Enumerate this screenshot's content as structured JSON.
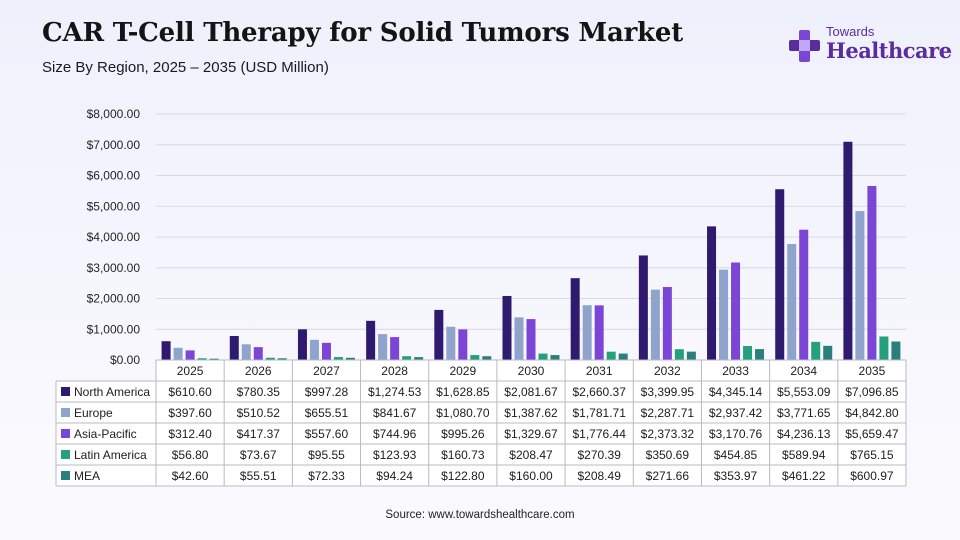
{
  "header": {
    "title": "CAR T-Cell Therapy for Solid Tumors Market",
    "subtitle": "Size By Region, 2025 – 2035 (USD Million)"
  },
  "logo": {
    "line1": "Towards",
    "line2": "Healthcare",
    "color": "#5a2d9c",
    "icon": "medical-cross-icon"
  },
  "source": "Source: www.towardshealthcare.com",
  "chart_data": {
    "type": "bar",
    "title": "CAR T-Cell Therapy for Solid Tumors Market",
    "subtitle": "Size By Region, 2025 – 2035 (USD Million)",
    "categories": [
      "2025",
      "2026",
      "2027",
      "2028",
      "2029",
      "2030",
      "2031",
      "2032",
      "2033",
      "2034",
      "2035"
    ],
    "ylim": [
      0,
      8000
    ],
    "yticks": [
      0,
      1000,
      2000,
      3000,
      4000,
      5000,
      6000,
      7000,
      8000
    ],
    "ytick_labels": [
      "$0.00",
      "$1,000.00",
      "$2,000.00",
      "$3,000.00",
      "$4,000.00",
      "$5,000.00",
      "$6,000.00",
      "$7,000.00",
      "$8,000.00"
    ],
    "grid": true,
    "legend": "table-below",
    "series": [
      {
        "name": "North America",
        "color": "#2e1a6e",
        "values": [
          610.6,
          780.35,
          997.28,
          1274.53,
          1628.85,
          2081.67,
          2660.37,
          3399.95,
          4345.14,
          5553.09,
          7096.85
        ],
        "labels": [
          "$610.60",
          "$780.35",
          "$997.28",
          "$1,274.53",
          "$1,628.85",
          "$2,081.67",
          "$2,660.37",
          "$3,399.95",
          "$4,345.14",
          "$5,553.09",
          "$7,096.85"
        ]
      },
      {
        "name": "Europe",
        "color": "#8ea4cc",
        "values": [
          397.6,
          510.52,
          655.51,
          841.67,
          1080.7,
          1387.62,
          1781.71,
          2287.71,
          2937.42,
          3771.65,
          4842.8
        ],
        "labels": [
          "$397.60",
          "$510.52",
          "$655.51",
          "$841.67",
          "$1,080.70",
          "$1,387.62",
          "$1,781.71",
          "$2,287.71",
          "$2,937.42",
          "$3,771.65",
          "$4,842.80"
        ]
      },
      {
        "name": "Asia-Pacific",
        "color": "#7b45d6",
        "values": [
          312.4,
          417.37,
          557.6,
          744.96,
          995.26,
          1329.67,
          1776.44,
          2373.32,
          3170.76,
          4236.13,
          5659.47
        ],
        "labels": [
          "$312.40",
          "$417.37",
          "$557.60",
          "$744.96",
          "$995.26",
          "$1,329.67",
          "$1,776.44",
          "$2,373.32",
          "$3,170.76",
          "$4,236.13",
          "$5,659.47"
        ]
      },
      {
        "name": "Latin America",
        "color": "#24a07d",
        "values": [
          56.8,
          73.67,
          95.55,
          123.93,
          160.73,
          208.47,
          270.39,
          350.69,
          454.85,
          589.94,
          765.15
        ],
        "labels": [
          "$56.80",
          "$73.67",
          "$95.55",
          "$123.93",
          "$160.73",
          "$208.47",
          "$270.39",
          "$350.69",
          "$454.85",
          "$589.94",
          "$765.15"
        ]
      },
      {
        "name": "MEA",
        "color": "#2a7f7c",
        "values": [
          42.6,
          55.51,
          72.33,
          94.24,
          122.8,
          160.0,
          208.49,
          271.66,
          353.97,
          461.22,
          600.97
        ],
        "labels": [
          "$42.60",
          "$55.51",
          "$72.33",
          "$94.24",
          "$122.80",
          "$160.00",
          "$208.49",
          "$271.66",
          "$353.97",
          "$461.22",
          "$600.97"
        ]
      }
    ]
  }
}
